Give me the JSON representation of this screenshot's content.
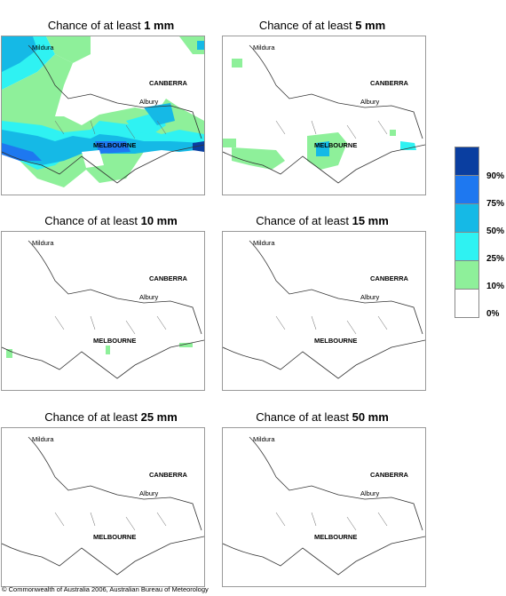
{
  "panels": [
    {
      "title_prefix": "Chance of at least ",
      "threshold": "1 mm"
    },
    {
      "title_prefix": "Chance of at least ",
      "threshold": "5 mm"
    },
    {
      "title_prefix": "Chance of at least ",
      "threshold": "10 mm"
    },
    {
      "title_prefix": "Chance of at least ",
      "threshold": "15 mm"
    },
    {
      "title_prefix": "Chance of at least ",
      "threshold": "25 mm"
    },
    {
      "title_prefix": "Chance of at least ",
      "threshold": "50 mm"
    }
  ],
  "cities": {
    "mildura": "Mildura",
    "canberra": "CANBERRA",
    "albury": "Albury",
    "melbourne": "MELBOURNE"
  },
  "legend": {
    "labels": [
      "90%",
      "75%",
      "50%",
      "25%",
      "10%",
      "0%"
    ],
    "colors": [
      "#0a3ea0",
      "#1e78f0",
      "#15b9e6",
      "#2ff2f2",
      "#8ef09a",
      "#ffffff"
    ]
  },
  "footer": "© Commonwealth of Australia 2006, Australian Bureau of Meteorology"
}
